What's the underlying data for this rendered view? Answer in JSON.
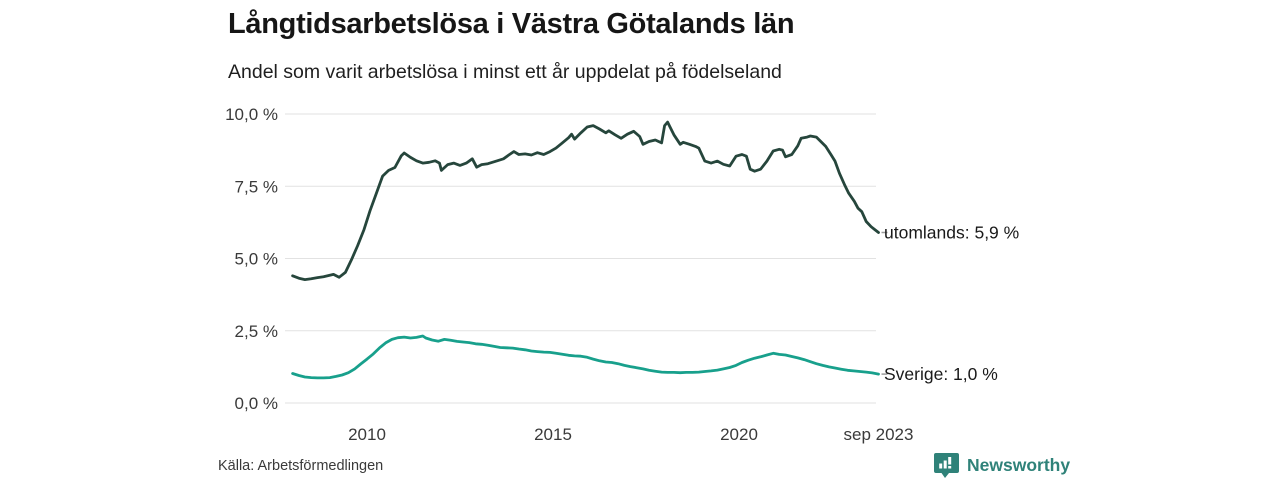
{
  "header": {
    "title": "Långtidsarbetslösa i Västra Götalands län",
    "subtitle": "Andel som varit arbetslösa i minst ett år uppdelat på födelseland"
  },
  "footer": {
    "source": "Källa: Arbetsförmedlingen",
    "brand": "Newsworthy",
    "brand_icon": "newsworthy-bar-chart-bubble-icon",
    "brand_color": "#2f8279"
  },
  "colors": {
    "grid": "#e2e2e2",
    "utomlands_line": "#26463c",
    "sverige_line": "#18a08c",
    "text": "#161616",
    "axis_text": "#3a3a3a"
  },
  "chart_data": {
    "type": "line",
    "title": "Långtidsarbetslösa i Västra Götalands län",
    "subtitle": "Andel som varit arbetslösa i minst ett år uppdelat på födelseland",
    "xlabel": "",
    "ylabel": "",
    "ylim": [
      0,
      10
    ],
    "xlim": [
      2008.0,
      2023.75
    ],
    "grid": "horizontal",
    "legend_position": "end-of-line-labels",
    "y_ticks": [
      {
        "label": "10,0 %",
        "value": 10.0
      },
      {
        "label": "7,5 %",
        "value": 7.5
      },
      {
        "label": "5,0 %",
        "value": 5.0
      },
      {
        "label": "2,5 %",
        "value": 2.5
      },
      {
        "label": "0,0 %",
        "value": 0.0
      }
    ],
    "x_ticks": [
      {
        "label": "2010",
        "year": 2010
      },
      {
        "label": "2015",
        "year": 2015
      },
      {
        "label": "2020",
        "year": 2020
      },
      {
        "label": "sep 2023",
        "year": 2023.75
      }
    ],
    "series": [
      {
        "name": "utomlands",
        "end_label": "utomlands: 5,9 %",
        "end_value": "5,9 %",
        "color": "#26463c",
        "points": [
          [
            2008.0,
            4.4
          ],
          [
            2008.17,
            4.32
          ],
          [
            2008.33,
            4.27
          ],
          [
            2008.5,
            4.3
          ],
          [
            2008.67,
            4.34
          ],
          [
            2008.83,
            4.37
          ],
          [
            2009.0,
            4.42
          ],
          [
            2009.1,
            4.45
          ],
          [
            2009.25,
            4.35
          ],
          [
            2009.42,
            4.52
          ],
          [
            2009.58,
            4.95
          ],
          [
            2009.75,
            5.45
          ],
          [
            2009.92,
            6.0
          ],
          [
            2010.08,
            6.65
          ],
          [
            2010.25,
            7.25
          ],
          [
            2010.42,
            7.85
          ],
          [
            2010.58,
            8.05
          ],
          [
            2010.75,
            8.15
          ],
          [
            2010.92,
            8.55
          ],
          [
            2011.0,
            8.65
          ],
          [
            2011.17,
            8.5
          ],
          [
            2011.33,
            8.38
          ],
          [
            2011.5,
            8.3
          ],
          [
            2011.67,
            8.33
          ],
          [
            2011.83,
            8.38
          ],
          [
            2011.95,
            8.3
          ],
          [
            2012.0,
            8.05
          ],
          [
            2012.17,
            8.25
          ],
          [
            2012.33,
            8.3
          ],
          [
            2012.5,
            8.22
          ],
          [
            2012.67,
            8.3
          ],
          [
            2012.83,
            8.45
          ],
          [
            2012.95,
            8.16
          ],
          [
            2013.08,
            8.25
          ],
          [
            2013.25,
            8.28
          ],
          [
            2013.5,
            8.38
          ],
          [
            2013.67,
            8.45
          ],
          [
            2013.83,
            8.6
          ],
          [
            2013.95,
            8.7
          ],
          [
            2014.08,
            8.6
          ],
          [
            2014.25,
            8.62
          ],
          [
            2014.42,
            8.58
          ],
          [
            2014.58,
            8.66
          ],
          [
            2014.75,
            8.6
          ],
          [
            2014.92,
            8.7
          ],
          [
            2015.08,
            8.82
          ],
          [
            2015.25,
            9.0
          ],
          [
            2015.42,
            9.18
          ],
          [
            2015.5,
            9.3
          ],
          [
            2015.58,
            9.13
          ],
          [
            2015.75,
            9.35
          ],
          [
            2015.92,
            9.55
          ],
          [
            2016.08,
            9.6
          ],
          [
            2016.25,
            9.48
          ],
          [
            2016.42,
            9.35
          ],
          [
            2016.5,
            9.42
          ],
          [
            2016.67,
            9.28
          ],
          [
            2016.83,
            9.16
          ],
          [
            2017.0,
            9.3
          ],
          [
            2017.17,
            9.4
          ],
          [
            2017.33,
            9.22
          ],
          [
            2017.42,
            8.95
          ],
          [
            2017.58,
            9.05
          ],
          [
            2017.75,
            9.1
          ],
          [
            2017.92,
            9.0
          ],
          [
            2018.0,
            9.6
          ],
          [
            2018.08,
            9.72
          ],
          [
            2018.25,
            9.28
          ],
          [
            2018.42,
            8.95
          ],
          [
            2018.5,
            9.02
          ],
          [
            2018.67,
            8.95
          ],
          [
            2018.83,
            8.88
          ],
          [
            2018.92,
            8.82
          ],
          [
            2019.08,
            8.37
          ],
          [
            2019.25,
            8.3
          ],
          [
            2019.42,
            8.37
          ],
          [
            2019.58,
            8.26
          ],
          [
            2019.75,
            8.2
          ],
          [
            2019.92,
            8.54
          ],
          [
            2020.08,
            8.6
          ],
          [
            2020.2,
            8.54
          ],
          [
            2020.3,
            8.09
          ],
          [
            2020.42,
            8.02
          ],
          [
            2020.58,
            8.09
          ],
          [
            2020.75,
            8.37
          ],
          [
            2020.92,
            8.72
          ],
          [
            2021.08,
            8.78
          ],
          [
            2021.17,
            8.75
          ],
          [
            2021.25,
            8.52
          ],
          [
            2021.42,
            8.6
          ],
          [
            2021.58,
            8.9
          ],
          [
            2021.67,
            9.16
          ],
          [
            2021.83,
            9.2
          ],
          [
            2021.92,
            9.24
          ],
          [
            2022.08,
            9.2
          ],
          [
            2022.2,
            9.05
          ],
          [
            2022.33,
            8.88
          ],
          [
            2022.47,
            8.6
          ],
          [
            2022.58,
            8.37
          ],
          [
            2022.7,
            7.95
          ],
          [
            2022.83,
            7.57
          ],
          [
            2022.95,
            7.26
          ],
          [
            2023.1,
            6.98
          ],
          [
            2023.2,
            6.74
          ],
          [
            2023.3,
            6.62
          ],
          [
            2023.42,
            6.28
          ],
          [
            2023.55,
            6.1
          ],
          [
            2023.65,
            6.0
          ],
          [
            2023.75,
            5.9
          ]
        ]
      },
      {
        "name": "Sverige",
        "end_label": "Sverige: 1,0 %",
        "end_value": "1,0 %",
        "color": "#18a08c",
        "points": [
          [
            2008.0,
            1.02
          ],
          [
            2008.17,
            0.95
          ],
          [
            2008.33,
            0.9
          ],
          [
            2008.5,
            0.88
          ],
          [
            2008.67,
            0.87
          ],
          [
            2008.83,
            0.87
          ],
          [
            2009.0,
            0.88
          ],
          [
            2009.17,
            0.92
          ],
          [
            2009.33,
            0.97
          ],
          [
            2009.5,
            1.05
          ],
          [
            2009.67,
            1.18
          ],
          [
            2009.83,
            1.35
          ],
          [
            2010.0,
            1.52
          ],
          [
            2010.17,
            1.7
          ],
          [
            2010.33,
            1.9
          ],
          [
            2010.5,
            2.08
          ],
          [
            2010.67,
            2.2
          ],
          [
            2010.83,
            2.26
          ],
          [
            2011.0,
            2.28
          ],
          [
            2011.17,
            2.25
          ],
          [
            2011.33,
            2.27
          ],
          [
            2011.5,
            2.32
          ],
          [
            2011.58,
            2.25
          ],
          [
            2011.75,
            2.18
          ],
          [
            2011.92,
            2.14
          ],
          [
            2012.08,
            2.2
          ],
          [
            2012.25,
            2.17
          ],
          [
            2012.42,
            2.13
          ],
          [
            2012.58,
            2.11
          ],
          [
            2012.75,
            2.09
          ],
          [
            2012.92,
            2.05
          ],
          [
            2013.08,
            2.03
          ],
          [
            2013.25,
            2.0
          ],
          [
            2013.42,
            1.96
          ],
          [
            2013.58,
            1.92
          ],
          [
            2013.75,
            1.91
          ],
          [
            2013.92,
            1.9
          ],
          [
            2014.08,
            1.87
          ],
          [
            2014.25,
            1.84
          ],
          [
            2014.42,
            1.8
          ],
          [
            2014.58,
            1.78
          ],
          [
            2014.75,
            1.76
          ],
          [
            2014.92,
            1.75
          ],
          [
            2015.08,
            1.72
          ],
          [
            2015.25,
            1.69
          ],
          [
            2015.42,
            1.65
          ],
          [
            2015.58,
            1.63
          ],
          [
            2015.75,
            1.62
          ],
          [
            2015.92,
            1.58
          ],
          [
            2016.08,
            1.52
          ],
          [
            2016.25,
            1.46
          ],
          [
            2016.42,
            1.42
          ],
          [
            2016.58,
            1.4
          ],
          [
            2016.75,
            1.36
          ],
          [
            2016.92,
            1.3
          ],
          [
            2017.08,
            1.26
          ],
          [
            2017.25,
            1.22
          ],
          [
            2017.42,
            1.18
          ],
          [
            2017.58,
            1.13
          ],
          [
            2017.75,
            1.1
          ],
          [
            2017.92,
            1.07
          ],
          [
            2018.08,
            1.06
          ],
          [
            2018.25,
            1.06
          ],
          [
            2018.42,
            1.05
          ],
          [
            2018.58,
            1.06
          ],
          [
            2018.75,
            1.06
          ],
          [
            2018.92,
            1.07
          ],
          [
            2019.08,
            1.09
          ],
          [
            2019.25,
            1.11
          ],
          [
            2019.42,
            1.14
          ],
          [
            2019.58,
            1.18
          ],
          [
            2019.75,
            1.23
          ],
          [
            2019.92,
            1.3
          ],
          [
            2020.08,
            1.4
          ],
          [
            2020.25,
            1.48
          ],
          [
            2020.42,
            1.55
          ],
          [
            2020.58,
            1.6
          ],
          [
            2020.75,
            1.66
          ],
          [
            2020.92,
            1.72
          ],
          [
            2021.08,
            1.68
          ],
          [
            2021.25,
            1.66
          ],
          [
            2021.42,
            1.61
          ],
          [
            2021.58,
            1.56
          ],
          [
            2021.75,
            1.5
          ],
          [
            2021.92,
            1.43
          ],
          [
            2022.08,
            1.36
          ],
          [
            2022.25,
            1.3
          ],
          [
            2022.42,
            1.25
          ],
          [
            2022.58,
            1.21
          ],
          [
            2022.75,
            1.17
          ],
          [
            2022.92,
            1.13
          ],
          [
            2023.08,
            1.11
          ],
          [
            2023.25,
            1.09
          ],
          [
            2023.42,
            1.07
          ],
          [
            2023.58,
            1.04
          ],
          [
            2023.75,
            1.0
          ]
        ]
      }
    ]
  }
}
